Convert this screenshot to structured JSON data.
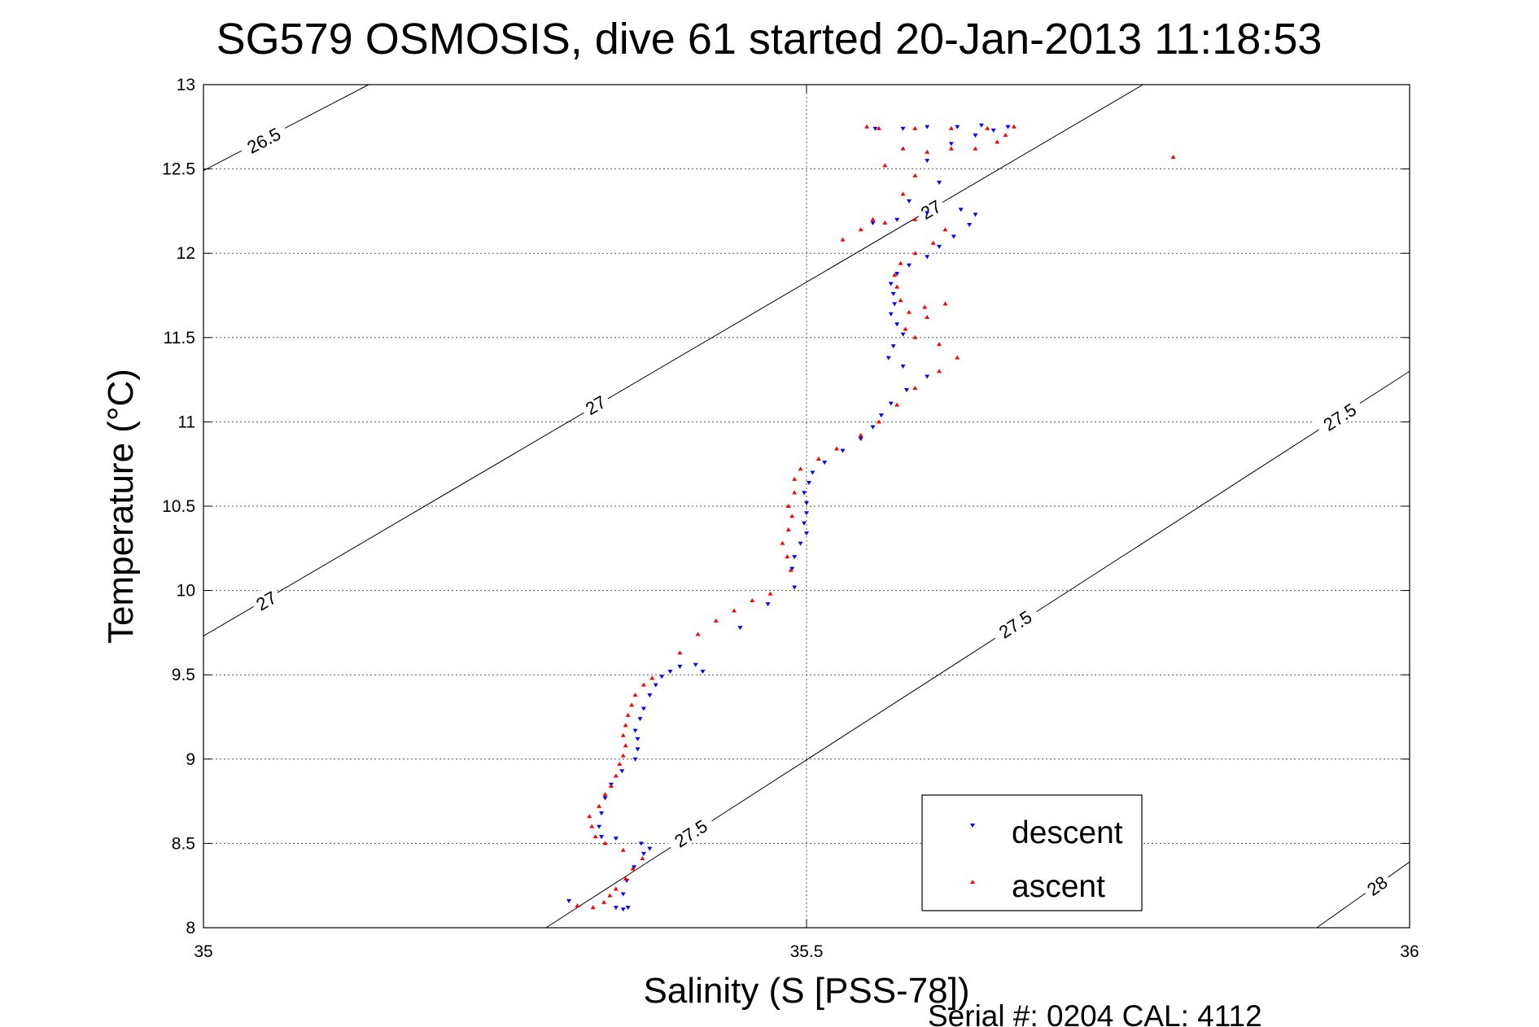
{
  "chart_data": {
    "type": "scatter",
    "title": "SG579 OSMOSIS, dive 61 started 20-Jan-2013 11:18:53",
    "xlabel": "Salinity (S [PSS-78])",
    "ylabel": "Temperature (°C)",
    "xlim": [
      35,
      36
    ],
    "ylim": [
      8,
      13
    ],
    "x_ticks": [
      "35",
      "35.5",
      "36"
    ],
    "y_ticks": [
      "8",
      "8.5",
      "9",
      "9.5",
      "10",
      "10.5",
      "11",
      "11.5",
      "12",
      "12.5",
      "13"
    ],
    "grid": true,
    "legend_position": "bottom-right",
    "footer": "Serial #: 0204  CAL: 4112",
    "contours": [
      {
        "label": "26.5",
        "points": [
          [
            35.0,
            12.49
          ],
          [
            35.137,
            13.0
          ]
        ],
        "labels": [
          {
            "text": "26.5",
            "x": 35.05,
            "y": 12.67
          }
        ]
      },
      {
        "label": "27",
        "points": [
          [
            35.0,
            9.73
          ],
          [
            35.779,
            13.0
          ]
        ],
        "labels": [
          {
            "text": "27",
            "x": 35.052,
            "y": 9.94
          },
          {
            "text": "27",
            "x": 35.325,
            "y": 11.1
          },
          {
            "text": "27",
            "x": 35.603,
            "y": 12.26
          }
        ]
      },
      {
        "label": "27.5",
        "points": [
          [
            35.284,
            8.0
          ],
          [
            36.0,
            11.3
          ]
        ],
        "labels": [
          {
            "text": "27.5",
            "x": 35.404,
            "y": 8.56
          },
          {
            "text": "27.5",
            "x": 35.673,
            "y": 9.8
          },
          {
            "text": "27.5",
            "x": 35.942,
            "y": 11.03
          }
        ]
      },
      {
        "label": "28",
        "points": [
          [
            35.923,
            8.0
          ],
          [
            36.0,
            8.39
          ]
        ],
        "labels": [
          {
            "text": "28",
            "x": 35.973,
            "y": 8.25
          }
        ]
      }
    ],
    "series": [
      {
        "name": "descent",
        "color": "#0000ff",
        "marker": "triangle-down",
        "points": [
          [
            35.303,
            8.16
          ],
          [
            35.342,
            8.12
          ],
          [
            35.348,
            8.11
          ],
          [
            35.352,
            8.12
          ],
          [
            35.348,
            8.2
          ],
          [
            35.351,
            8.28
          ],
          [
            35.357,
            8.36
          ],
          [
            35.365,
            8.44
          ],
          [
            35.37,
            8.47
          ],
          [
            35.363,
            8.5
          ],
          [
            35.342,
            8.53
          ],
          [
            35.33,
            8.54
          ],
          [
            35.328,
            8.6
          ],
          [
            35.33,
            8.68
          ],
          [
            35.333,
            8.77
          ],
          [
            35.338,
            8.85
          ],
          [
            35.347,
            8.93
          ],
          [
            35.358,
            9.0
          ],
          [
            35.36,
            9.06
          ],
          [
            35.36,
            9.12
          ],
          [
            35.358,
            9.17
          ],
          [
            35.362,
            9.24
          ],
          [
            35.365,
            9.3
          ],
          [
            35.37,
            9.38
          ],
          [
            35.375,
            9.44
          ],
          [
            35.38,
            9.49
          ],
          [
            35.387,
            9.52
          ],
          [
            35.395,
            9.55
          ],
          [
            35.408,
            9.56
          ],
          [
            35.414,
            9.52
          ],
          [
            35.445,
            9.78
          ],
          [
            35.468,
            9.92
          ],
          [
            35.49,
            10.02
          ],
          [
            35.488,
            10.13
          ],
          [
            35.49,
            10.2
          ],
          [
            35.495,
            10.28
          ],
          [
            35.5,
            10.34
          ],
          [
            35.498,
            10.4
          ],
          [
            35.5,
            10.46
          ],
          [
            35.5,
            10.52
          ],
          [
            35.498,
            10.58
          ],
          [
            35.502,
            10.64
          ],
          [
            35.505,
            10.7
          ],
          [
            35.515,
            10.76
          ],
          [
            35.53,
            10.83
          ],
          [
            35.545,
            10.9
          ],
          [
            35.555,
            10.97
          ],
          [
            35.562,
            11.04
          ],
          [
            35.57,
            11.11
          ],
          [
            35.583,
            11.19
          ],
          [
            35.6,
            11.27
          ],
          [
            35.58,
            11.33
          ],
          [
            35.568,
            11.38
          ],
          [
            35.572,
            11.45
          ],
          [
            35.58,
            11.52
          ],
          [
            35.575,
            11.58
          ],
          [
            35.57,
            11.64
          ],
          [
            35.573,
            11.7
          ],
          [
            35.572,
            11.76
          ],
          [
            35.57,
            11.82
          ],
          [
            35.575,
            11.88
          ],
          [
            35.585,
            11.93
          ],
          [
            35.6,
            11.98
          ],
          [
            35.61,
            12.04
          ],
          [
            35.622,
            12.1
          ],
          [
            35.635,
            12.17
          ],
          [
            35.64,
            12.23
          ],
          [
            35.628,
            12.26
          ],
          [
            35.6,
            12.24
          ],
          [
            35.575,
            12.2
          ],
          [
            35.555,
            12.18
          ],
          [
            35.585,
            12.31
          ],
          [
            35.61,
            12.42
          ],
          [
            35.6,
            12.55
          ],
          [
            35.62,
            12.65
          ],
          [
            35.64,
            12.7
          ],
          [
            35.655,
            12.73
          ],
          [
            35.667,
            12.75
          ],
          [
            35.645,
            12.76
          ],
          [
            35.625,
            12.75
          ],
          [
            35.6,
            12.75
          ],
          [
            35.58,
            12.74
          ],
          [
            35.557,
            12.74
          ]
        ]
      },
      {
        "name": "ascent",
        "color": "#ff0000",
        "marker": "triangle-up",
        "points": [
          [
            35.31,
            8.13
          ],
          [
            35.323,
            8.12
          ],
          [
            35.332,
            8.15
          ],
          [
            35.337,
            8.19
          ],
          [
            35.342,
            8.23
          ],
          [
            35.35,
            8.29
          ],
          [
            35.356,
            8.35
          ],
          [
            35.364,
            8.41
          ],
          [
            35.348,
            8.46
          ],
          [
            35.333,
            8.5
          ],
          [
            35.325,
            8.54
          ],
          [
            35.322,
            8.6
          ],
          [
            35.32,
            8.66
          ],
          [
            35.328,
            8.72
          ],
          [
            35.333,
            8.79
          ],
          [
            35.338,
            8.84
          ],
          [
            35.342,
            8.9
          ],
          [
            35.345,
            8.97
          ],
          [
            35.348,
            9.02
          ],
          [
            35.35,
            9.08
          ],
          [
            35.348,
            9.14
          ],
          [
            35.35,
            9.2
          ],
          [
            35.352,
            9.26
          ],
          [
            35.355,
            9.32
          ],
          [
            35.358,
            9.38
          ],
          [
            35.365,
            9.44
          ],
          [
            35.372,
            9.48
          ],
          [
            35.395,
            9.63
          ],
          [
            35.41,
            9.74
          ],
          [
            35.425,
            9.82
          ],
          [
            35.44,
            9.88
          ],
          [
            35.455,
            9.94
          ],
          [
            35.47,
            9.98
          ],
          [
            35.487,
            10.12
          ],
          [
            35.484,
            10.2
          ],
          [
            35.48,
            10.28
          ],
          [
            35.485,
            10.36
          ],
          [
            35.488,
            10.44
          ],
          [
            35.485,
            10.5
          ],
          [
            35.49,
            10.58
          ],
          [
            35.49,
            10.66
          ],
          [
            35.495,
            10.72
          ],
          [
            35.51,
            10.78
          ],
          [
            35.525,
            10.84
          ],
          [
            35.545,
            10.92
          ],
          [
            35.56,
            11.0
          ],
          [
            35.575,
            11.1
          ],
          [
            35.59,
            11.2
          ],
          [
            35.61,
            11.3
          ],
          [
            35.625,
            11.38
          ],
          [
            35.61,
            11.46
          ],
          [
            35.59,
            11.5
          ],
          [
            35.582,
            11.55
          ],
          [
            35.6,
            11.62
          ],
          [
            35.615,
            11.7
          ],
          [
            35.598,
            11.68
          ],
          [
            35.585,
            11.65
          ],
          [
            35.578,
            11.72
          ],
          [
            35.575,
            11.8
          ],
          [
            35.573,
            11.87
          ],
          [
            35.578,
            11.94
          ],
          [
            35.59,
            12.0
          ],
          [
            35.605,
            12.06
          ],
          [
            35.615,
            12.14
          ],
          [
            35.59,
            12.2
          ],
          [
            35.565,
            12.18
          ],
          [
            35.545,
            12.14
          ],
          [
            35.53,
            12.08
          ],
          [
            35.555,
            12.2
          ],
          [
            35.58,
            12.35
          ],
          [
            35.59,
            12.46
          ],
          [
            35.565,
            12.52
          ],
          [
            35.6,
            12.6
          ],
          [
            35.62,
            12.62
          ],
          [
            35.64,
            12.62
          ],
          [
            35.658,
            12.66
          ],
          [
            35.665,
            12.7
          ],
          [
            35.672,
            12.75
          ],
          [
            35.65,
            12.74
          ],
          [
            35.62,
            12.74
          ],
          [
            35.59,
            12.74
          ],
          [
            35.58,
            12.62
          ],
          [
            35.56,
            12.74
          ],
          [
            35.55,
            12.75
          ],
          [
            35.804,
            12.57
          ]
        ]
      }
    ]
  }
}
